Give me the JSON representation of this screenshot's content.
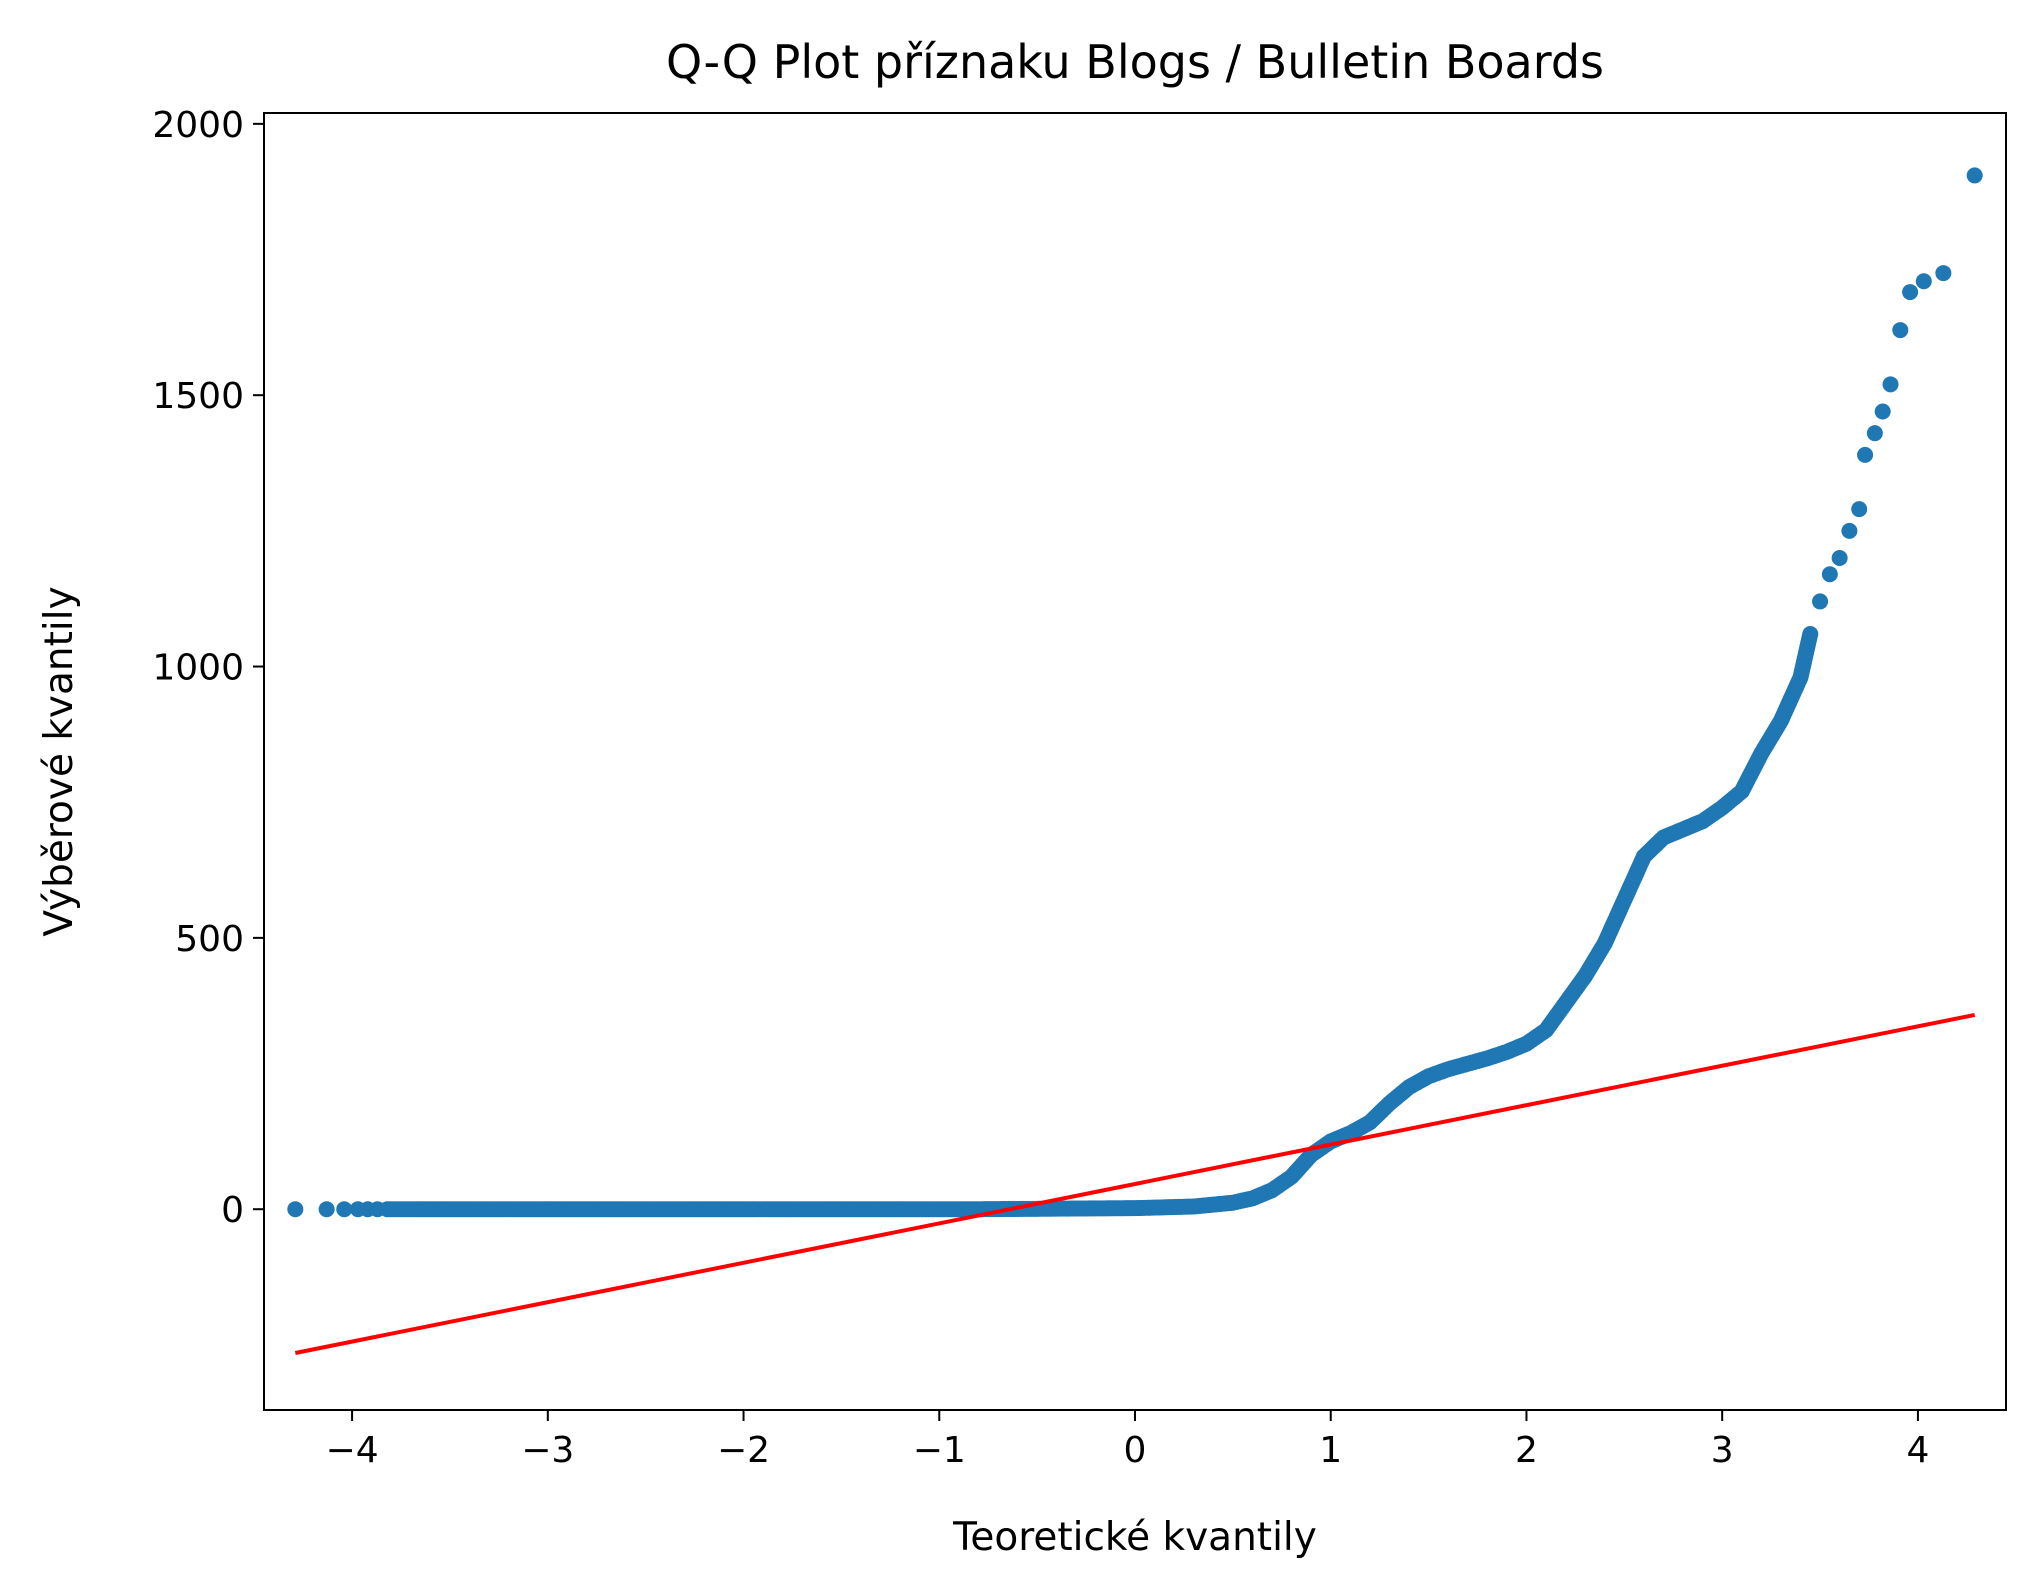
{
  "chart_data": {
    "type": "scatter",
    "title": "Q-Q Plot příznaku Blogs / Bulletin Boards",
    "xlabel": "Teoretické kvantily",
    "ylabel": "Výběrové kvantily",
    "xlim": [
      -4.45,
      4.45
    ],
    "ylim": [
      -370,
      2020
    ],
    "x_ticks": [
      -4,
      -3,
      -2,
      -1,
      0,
      1,
      2,
      3,
      4
    ],
    "x_tick_labels": [
      "−4",
      "−3",
      "−2",
      "−1",
      "0",
      "1",
      "2",
      "3",
      "4"
    ],
    "y_ticks": [
      0,
      500,
      1000,
      1500,
      2000
    ],
    "y_tick_labels": [
      "0",
      "500",
      "1000",
      "1500",
      "2000"
    ],
    "grid": false,
    "series": [
      {
        "kind": "points",
        "color": "#1f77b4",
        "points": [
          [
            -4.29,
            0
          ],
          [
            -4.13,
            0
          ],
          [
            -4.04,
            0
          ],
          [
            -3.97,
            0
          ],
          [
            -3.92,
            0
          ],
          [
            -3.87,
            0
          ],
          [
            -3.82,
            0
          ],
          [
            -3.7,
            0
          ],
          [
            -3.5,
            0
          ],
          [
            -3.2,
            0
          ],
          [
            -2.8,
            0
          ],
          [
            -2.4,
            0
          ],
          [
            -2.0,
            0
          ],
          [
            -1.6,
            0
          ],
          [
            -1.2,
            0
          ],
          [
            -0.8,
            0
          ],
          [
            -0.4,
            1
          ],
          [
            0.0,
            2
          ],
          [
            0.3,
            5
          ],
          [
            0.5,
            12
          ],
          [
            0.6,
            20
          ],
          [
            0.7,
            35
          ],
          [
            0.8,
            60
          ],
          [
            0.9,
            100
          ],
          [
            1.0,
            125
          ],
          [
            1.1,
            140
          ],
          [
            1.2,
            160
          ],
          [
            1.3,
            195
          ],
          [
            1.4,
            225
          ],
          [
            1.5,
            245
          ],
          [
            1.6,
            258
          ],
          [
            1.7,
            268
          ],
          [
            1.8,
            278
          ],
          [
            1.9,
            290
          ],
          [
            2.0,
            305
          ],
          [
            2.1,
            330
          ],
          [
            2.2,
            380
          ],
          [
            2.3,
            430
          ],
          [
            2.4,
            490
          ],
          [
            2.5,
            570
          ],
          [
            2.6,
            650
          ],
          [
            2.7,
            685
          ],
          [
            2.8,
            700
          ],
          [
            2.9,
            715
          ],
          [
            3.0,
            740
          ],
          [
            3.1,
            770
          ],
          [
            3.2,
            840
          ],
          [
            3.3,
            900
          ],
          [
            3.35,
            940
          ],
          [
            3.4,
            980
          ],
          [
            3.45,
            1060
          ],
          [
            3.5,
            1120
          ],
          [
            3.55,
            1170
          ],
          [
            3.6,
            1200
          ],
          [
            3.65,
            1250
          ],
          [
            3.7,
            1290
          ],
          [
            3.73,
            1390
          ],
          [
            3.78,
            1430
          ],
          [
            3.82,
            1470
          ],
          [
            3.86,
            1520
          ],
          [
            3.91,
            1620
          ],
          [
            3.96,
            1690
          ],
          [
            4.03,
            1710
          ],
          [
            4.13,
            1725
          ],
          [
            4.29,
            1905
          ]
        ]
      },
      {
        "kind": "line",
        "color": "#ff0000",
        "points": [
          [
            -4.29,
            -265
          ],
          [
            4.29,
            358
          ]
        ]
      }
    ]
  }
}
